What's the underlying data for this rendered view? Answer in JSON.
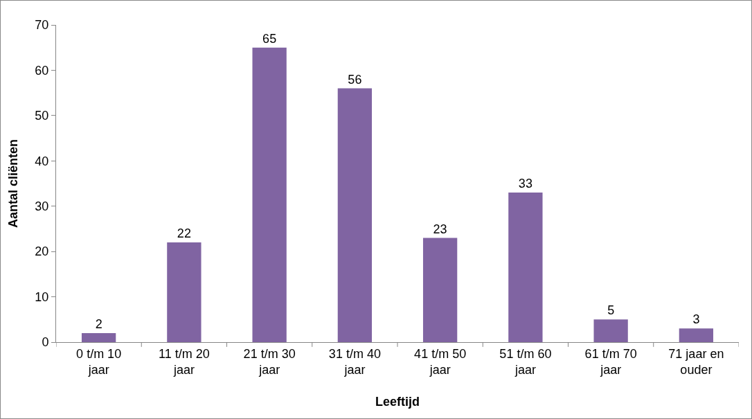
{
  "chart_data": {
    "type": "bar",
    "xlabel": "Leeftijd",
    "ylabel": "Aantal cliënten",
    "categories": [
      "0 t/m 10 jaar",
      "11 t/m 20 jaar",
      "21 t/m 30 jaar",
      "31 t/m 40 jaar",
      "41 t/m 50 jaar",
      "51 t/m 60 jaar",
      "61 t/m 70 jaar",
      "71 jaar en ouder"
    ],
    "values": [
      2,
      22,
      65,
      56,
      23,
      33,
      5,
      3
    ],
    "color": "#8064a2",
    "data_labels": true,
    "grid": false,
    "legend": false,
    "ylim": [
      0,
      70
    ],
    "yticks": [
      0,
      10,
      20,
      30,
      40,
      50,
      60,
      70
    ]
  }
}
